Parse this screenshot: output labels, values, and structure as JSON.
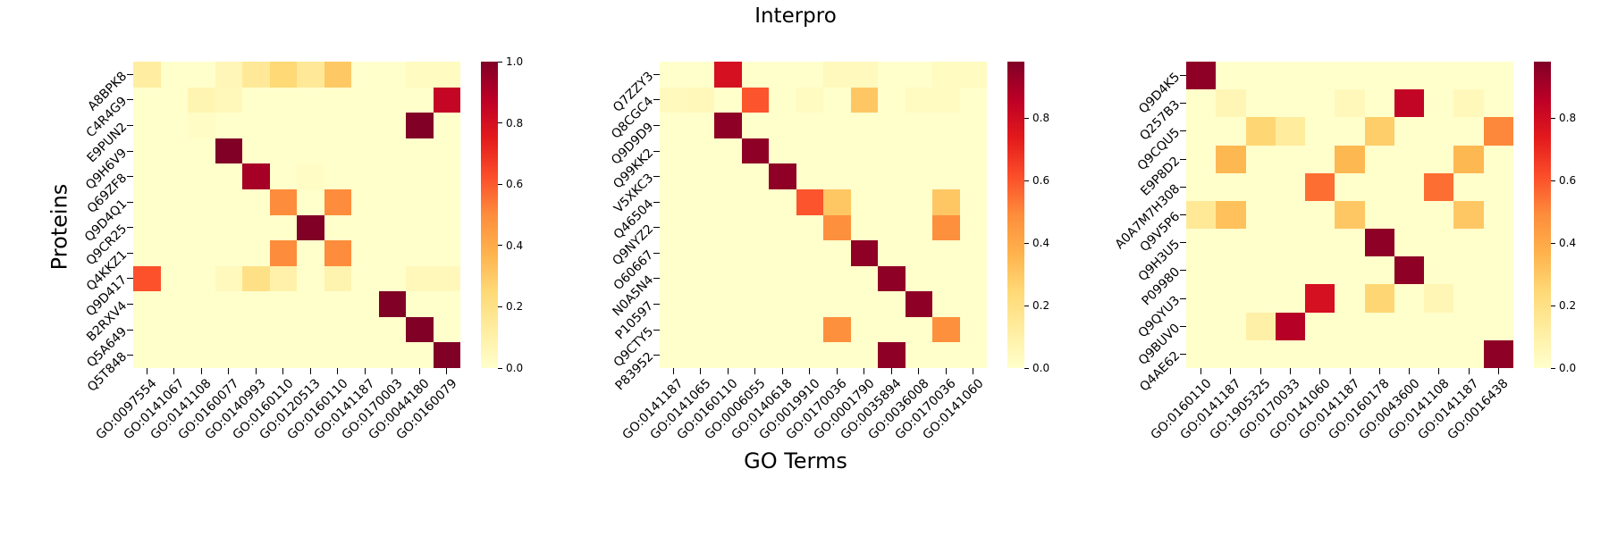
{
  "figure": {
    "title": "Interpro",
    "xlabel": "GO Terms",
    "ylabel": "Proteins"
  },
  "colormap": {
    "name": "YlOrRd",
    "zero_color": "#ffffcc",
    "stops": [
      "#ffffcc",
      "#ffeda0",
      "#fed976",
      "#feb24c",
      "#fd8d3c",
      "#fc4e2a",
      "#e31a1c",
      "#bd0026",
      "#800026"
    ]
  },
  "chart_data": [
    {
      "type": "heatmap",
      "name": "interpro-heatmap-1",
      "rows": [
        "A8BPK8",
        "C4R4G9",
        "E9PUN2",
        "Q9H6V9",
        "Q69ZF8",
        "Q9D4Q1",
        "Q9CR25",
        "Q4KKZ1",
        "Q9D417",
        "B2RXV4",
        "Q5A649",
        "Q5T848"
      ],
      "cols": [
        "GO:0097554",
        "GO:0141067",
        "GO:0141108",
        "GO:0160077",
        "GO:0140993",
        "GO:0160110",
        "GO:0120513",
        "GO:0160110",
        "GO:0141187",
        "GO:0170003",
        "GO:0044180",
        "GO:0160079"
      ],
      "vmax": 1.0,
      "colorbar_ticks": [
        "1.0",
        "0.8",
        "0.6",
        "0.4",
        "0.2",
        "0.0"
      ],
      "values": [
        [
          0.12,
          0,
          0,
          0.06,
          0.15,
          0.25,
          0.15,
          0.3,
          0,
          0,
          0.03,
          0.03
        ],
        [
          0,
          0,
          0.07,
          0.05,
          0,
          0,
          0,
          0,
          0,
          0,
          0,
          0.85
        ],
        [
          0,
          0,
          0.02,
          0,
          0,
          0,
          0,
          0,
          0,
          0,
          1.0,
          0
        ],
        [
          0,
          0,
          0,
          1.0,
          0,
          0,
          0,
          0,
          0,
          0,
          0,
          0
        ],
        [
          0,
          0,
          0,
          0,
          0.92,
          0,
          0.02,
          0,
          0,
          0,
          0,
          0
        ],
        [
          0,
          0,
          0,
          0,
          0,
          0.5,
          0,
          0.5,
          0,
          0,
          0,
          0
        ],
        [
          0,
          0,
          0,
          0,
          0,
          0,
          1.0,
          0,
          0,
          0,
          0,
          0
        ],
        [
          0,
          0,
          0,
          0,
          0,
          0.5,
          0,
          0.5,
          0,
          0,
          0,
          0
        ],
        [
          0.62,
          0,
          0,
          0.04,
          0.2,
          0.1,
          0,
          0.08,
          0,
          0,
          0.05,
          0.05
        ],
        [
          0,
          0,
          0,
          0,
          0,
          0,
          0,
          0,
          0,
          1.0,
          0,
          0
        ],
        [
          0,
          0,
          0,
          0,
          0,
          0,
          0,
          0,
          0,
          0,
          1.0,
          0
        ],
        [
          0,
          0,
          0,
          0,
          0,
          0,
          0,
          0,
          0,
          0,
          0,
          1.0
        ]
      ]
    },
    {
      "type": "heatmap",
      "name": "interpro-heatmap-2",
      "rows": [
        "Q7ZZY3",
        "Q8CGC4",
        "Q9D9D9",
        "Q99KK2",
        "V5XKC3",
        "Q46504",
        "Q9NYZ2",
        "O60667",
        "N0A5N4",
        "P10597",
        "Q9CTY5",
        "P83952"
      ],
      "cols": [
        "GO:0141187",
        "GO:0141065",
        "GO:0160110",
        "GO:0006055",
        "GO:0140618",
        "GO:0019910",
        "GO:0170036",
        "GO:0001790",
        "GO:0035894",
        "GO:0036008",
        "GO:0170036",
        "GO:0141060"
      ],
      "vmax": 0.98,
      "colorbar_ticks": [
        "0.8",
        "0.6",
        "0.4",
        "0.2",
        "0.0"
      ],
      "values": [
        [
          0,
          0,
          0.78,
          0,
          0,
          0,
          0.04,
          0.04,
          0,
          0,
          0.03,
          0.03
        ],
        [
          0.04,
          0.05,
          0,
          0.6,
          0,
          0.03,
          0,
          0.3,
          0,
          0.03,
          0.03,
          0
        ],
        [
          0,
          0,
          0.95,
          0,
          0,
          0,
          0,
          0,
          0,
          0,
          0,
          0
        ],
        [
          0,
          0,
          0,
          0.95,
          0,
          0,
          0,
          0,
          0,
          0,
          0,
          0
        ],
        [
          0,
          0,
          0,
          0,
          0.95,
          0,
          0,
          0,
          0,
          0,
          0,
          0
        ],
        [
          0,
          0,
          0,
          0,
          0,
          0.6,
          0.3,
          0,
          0,
          0,
          0.3,
          0
        ],
        [
          0,
          0,
          0,
          0,
          0,
          0,
          0.48,
          0,
          0,
          0,
          0.48,
          0
        ],
        [
          0,
          0,
          0,
          0,
          0,
          0,
          0,
          0.95,
          0,
          0,
          0,
          0
        ],
        [
          0,
          0,
          0,
          0,
          0,
          0,
          0,
          0,
          0.95,
          0,
          0,
          0
        ],
        [
          0,
          0,
          0,
          0,
          0,
          0,
          0,
          0,
          0,
          0.95,
          0,
          0
        ],
        [
          0,
          0,
          0,
          0,
          0,
          0,
          0.48,
          0,
          0,
          0,
          0.48,
          0
        ],
        [
          0,
          0,
          0,
          0,
          0,
          0,
          0,
          0,
          0.95,
          0,
          0,
          0
        ]
      ]
    },
    {
      "type": "heatmap",
      "name": "interpro-heatmap-3",
      "rows": [
        "Q9D4K5",
        "Q257B3",
        "Q9CQU5",
        "E9P8D2",
        "A0A7M7H308",
        "Q9V5P6",
        "Q9H3U5",
        "P09980",
        "Q9QYU3",
        "Q9BUV0",
        "Q4AE62"
      ],
      "cols": [
        "GO:0160110",
        "GO:0141187",
        "GO:1905325",
        "GO:0170033",
        "GO:0141060",
        "GO:0141187",
        "GO:0160178",
        "GO:0043600",
        "GO:0141108",
        "GO:0141187",
        "GO:0016438"
      ],
      "vmax": 0.98,
      "colorbar_ticks": [
        "0.8",
        "0.6",
        "0.4",
        "0.2",
        "0.0"
      ],
      "values": [
        [
          0.95,
          0,
          0,
          0,
          0,
          0,
          0,
          0,
          0,
          0,
          0
        ],
        [
          0,
          0.06,
          0,
          0,
          0,
          0.05,
          0,
          0.84,
          0,
          0.05,
          0
        ],
        [
          0,
          0,
          0.25,
          0.13,
          0,
          0,
          0.28,
          0,
          0,
          0,
          0.5
        ],
        [
          0,
          0.35,
          0,
          0,
          0,
          0.35,
          0,
          0,
          0,
          0.35,
          0
        ],
        [
          0,
          0,
          0,
          0,
          0.55,
          0,
          0,
          0,
          0.55,
          0,
          0
        ],
        [
          0.15,
          0.32,
          0,
          0,
          0,
          0.3,
          0,
          0,
          0,
          0.3,
          0
        ],
        [
          0,
          0,
          0,
          0,
          0,
          0,
          0.95,
          0,
          0,
          0,
          0
        ],
        [
          0,
          0,
          0,
          0,
          0,
          0,
          0,
          0.95,
          0,
          0,
          0
        ],
        [
          0,
          0,
          0,
          0,
          0.78,
          0,
          0.25,
          0,
          0.06,
          0,
          0
        ],
        [
          0,
          0,
          0.1,
          0.87,
          0,
          0,
          0,
          0,
          0,
          0,
          0
        ],
        [
          0,
          0,
          0,
          0,
          0,
          0,
          0,
          0,
          0,
          0,
          0.95
        ]
      ]
    }
  ]
}
